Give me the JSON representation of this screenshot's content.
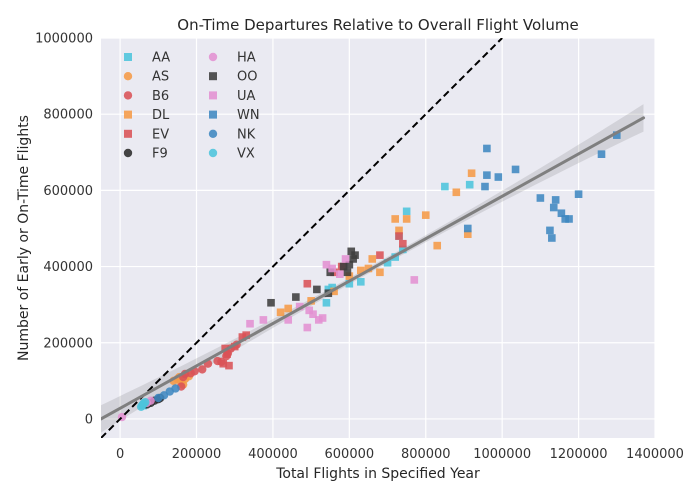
{
  "chart_data": {
    "type": "scatter",
    "title": "On-Time Departures Relative to Overall Flight Volume",
    "xlabel": "Total Flights in Specified Year",
    "ylabel": "Number of Early or On-Time Flights",
    "xlim": [
      -50000,
      1400000
    ],
    "ylim": [
      -50000,
      1000000
    ],
    "xticks": [
      "0",
      "200000",
      "400000",
      "600000",
      "800000",
      "1000000",
      "1200000",
      "1400000"
    ],
    "xtick_values": [
      0,
      200000,
      400000,
      600000,
      800000,
      1000000,
      1200000,
      1400000
    ],
    "yticks": [
      "0",
      "200000",
      "400000",
      "600000",
      "800000",
      "1000000"
    ],
    "ytick_values": [
      0,
      200000,
      400000,
      600000,
      800000,
      1000000
    ],
    "grid": true,
    "legend_position": "top-left",
    "reference_line": {
      "style": "dashed",
      "color": "#000000",
      "slope": 1,
      "intercept": 0
    },
    "regression": {
      "color": "#7f7f7f",
      "x_range": [
        -50000,
        1370000
      ],
      "slope": 0.5565,
      "intercept": 28000,
      "band": [
        8000,
        36000
      ]
    },
    "series": [
      {
        "name": "AA",
        "marker": "square",
        "color": "#4cc4dc",
        "points": [
          [
            60000,
            35000
          ],
          [
            62000,
            38000
          ],
          [
            65000,
            42000
          ],
          [
            540000,
            305000
          ],
          [
            545000,
            340000
          ],
          [
            555000,
            345000
          ],
          [
            600000,
            355000
          ],
          [
            630000,
            360000
          ],
          [
            700000,
            410000
          ],
          [
            720000,
            425000
          ],
          [
            740000,
            445000
          ],
          [
            750000,
            545000
          ],
          [
            850000,
            610000
          ],
          [
            915000,
            615000
          ],
          [
            730000,
            480000
          ]
        ]
      },
      {
        "name": "AS",
        "marker": "circle",
        "color": "#f59a47",
        "points": [
          [
            140000,
            100000
          ],
          [
            150000,
            105000
          ],
          [
            155000,
            110000
          ],
          [
            160000,
            95000
          ],
          [
            165000,
            90000
          ],
          [
            170000,
            105000
          ],
          [
            180000,
            112000
          ]
        ]
      },
      {
        "name": "B6",
        "marker": "circle",
        "color": "#d95256",
        "points": [
          [
            160000,
            85000
          ],
          [
            165000,
            110000
          ],
          [
            170000,
            118000
          ],
          [
            185000,
            120000
          ],
          [
            195000,
            125000
          ],
          [
            215000,
            130000
          ],
          [
            230000,
            145000
          ],
          [
            255000,
            152000
          ],
          [
            265000,
            150000
          ],
          [
            278000,
            165000
          ],
          [
            282000,
            172000
          ],
          [
            290000,
            185000
          ],
          [
            305000,
            195000
          ]
        ]
      },
      {
        "name": "DL",
        "marker": "square",
        "color": "#f59a47",
        "points": [
          [
            420000,
            280000
          ],
          [
            440000,
            290000
          ],
          [
            500000,
            310000
          ],
          [
            560000,
            335000
          ],
          [
            600000,
            375000
          ],
          [
            630000,
            390000
          ],
          [
            650000,
            395000
          ],
          [
            660000,
            420000
          ],
          [
            680000,
            385000
          ],
          [
            720000,
            525000
          ],
          [
            730000,
            495000
          ],
          [
            750000,
            525000
          ],
          [
            800000,
            535000
          ],
          [
            830000,
            455000
          ],
          [
            880000,
            595000
          ],
          [
            910000,
            485000
          ],
          [
            920000,
            645000
          ]
        ]
      },
      {
        "name": "EV",
        "marker": "square",
        "color": "#d95256",
        "points": [
          [
            270000,
            145000
          ],
          [
            275000,
            185000
          ],
          [
            280000,
            170000
          ],
          [
            285000,
            140000
          ],
          [
            300000,
            190000
          ],
          [
            320000,
            215000
          ],
          [
            330000,
            220000
          ],
          [
            490000,
            355000
          ],
          [
            560000,
            385000
          ],
          [
            580000,
            400000
          ],
          [
            680000,
            430000
          ],
          [
            730000,
            480000
          ],
          [
            740000,
            460000
          ]
        ]
      },
      {
        "name": "F9",
        "marker": "circle",
        "color": "#2b2b2b",
        "points": [
          [
            70000,
            38000
          ],
          [
            80000,
            42000
          ],
          [
            90000,
            48000
          ],
          [
            100000,
            52000
          ],
          [
            105000,
            55000
          ]
        ]
      },
      {
        "name": "HA",
        "marker": "circle",
        "color": "#e391d2",
        "points": [
          [
            5000,
            5000
          ],
          [
            70000,
            42000
          ],
          [
            80000,
            48000
          ]
        ]
      },
      {
        "name": "OO",
        "marker": "square",
        "color": "#3d3d3d",
        "points": [
          [
            395000,
            305000
          ],
          [
            460000,
            320000
          ],
          [
            515000,
            340000
          ],
          [
            545000,
            330000
          ],
          [
            550000,
            385000
          ],
          [
            585000,
            400000
          ],
          [
            595000,
            385000
          ],
          [
            600000,
            405000
          ],
          [
            605000,
            440000
          ],
          [
            610000,
            420000
          ],
          [
            615000,
            430000
          ]
        ]
      },
      {
        "name": "UA",
        "marker": "square",
        "color": "#e391d2",
        "points": [
          [
            340000,
            250000
          ],
          [
            375000,
            260000
          ],
          [
            440000,
            260000
          ],
          [
            470000,
            295000
          ],
          [
            490000,
            240000
          ],
          [
            495000,
            285000
          ],
          [
            505000,
            275000
          ],
          [
            520000,
            260000
          ],
          [
            530000,
            265000
          ],
          [
            540000,
            405000
          ],
          [
            555000,
            395000
          ],
          [
            575000,
            380000
          ],
          [
            590000,
            420000
          ],
          [
            770000,
            365000
          ]
        ]
      },
      {
        "name": "WN",
        "marker": "square",
        "color": "#3f87c0",
        "points": [
          [
            910000,
            500000
          ],
          [
            955000,
            610000
          ],
          [
            960000,
            640000
          ],
          [
            960000,
            710000
          ],
          [
            990000,
            635000
          ],
          [
            1035000,
            655000
          ],
          [
            1100000,
            580000
          ],
          [
            1125000,
            495000
          ],
          [
            1130000,
            475000
          ],
          [
            1135000,
            555000
          ],
          [
            1140000,
            575000
          ],
          [
            1155000,
            540000
          ],
          [
            1165000,
            525000
          ],
          [
            1175000,
            525000
          ],
          [
            1200000,
            590000
          ],
          [
            1260000,
            695000
          ],
          [
            1300000,
            745000
          ]
        ]
      },
      {
        "name": "NK",
        "marker": "circle",
        "color": "#3f87c0",
        "points": [
          [
            100000,
            55000
          ],
          [
            115000,
            62000
          ],
          [
            130000,
            72000
          ],
          [
            145000,
            80000
          ]
        ]
      },
      {
        "name": "VX",
        "marker": "circle",
        "color": "#4cc4dc",
        "points": [
          [
            55000,
            32000
          ],
          [
            58000,
            36000
          ],
          [
            62000,
            40000
          ],
          [
            66000,
            44000
          ]
        ]
      }
    ]
  }
}
